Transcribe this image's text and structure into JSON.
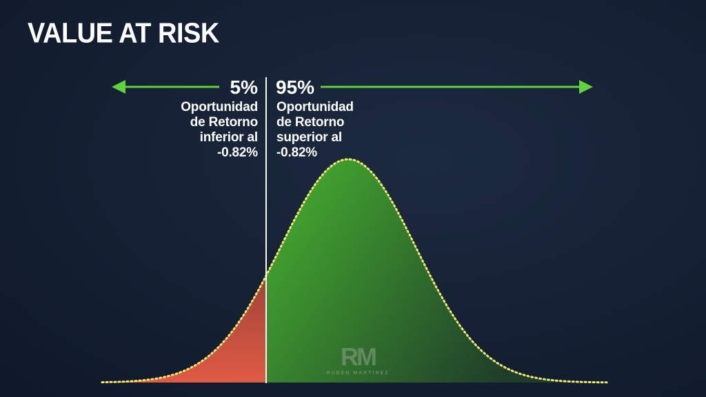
{
  "title": "VALUE AT RISK",
  "left": {
    "percent": "5%",
    "description": "Oportunidad\nde Retorno\ninferior al\n-0.82%"
  },
  "right": {
    "percent": "95%",
    "description": "Oportunidad\nde Retorno\nsuperior al\n-0.82%"
  },
  "watermark": {
    "logo": "RM",
    "name": "RUBÉN MARTÍNEZ"
  },
  "colors": {
    "arrow": "#5fd23c",
    "tail_fill": "#e05a45",
    "body_fill": "#4fc236",
    "curve_outline": "#f2ea6a",
    "divider": "#ffffff",
    "background": "#142033"
  },
  "distribution": {
    "type": "normal",
    "left_tail_share": 0.05,
    "right_share": 0.95,
    "threshold_return_percent": -0.82
  }
}
